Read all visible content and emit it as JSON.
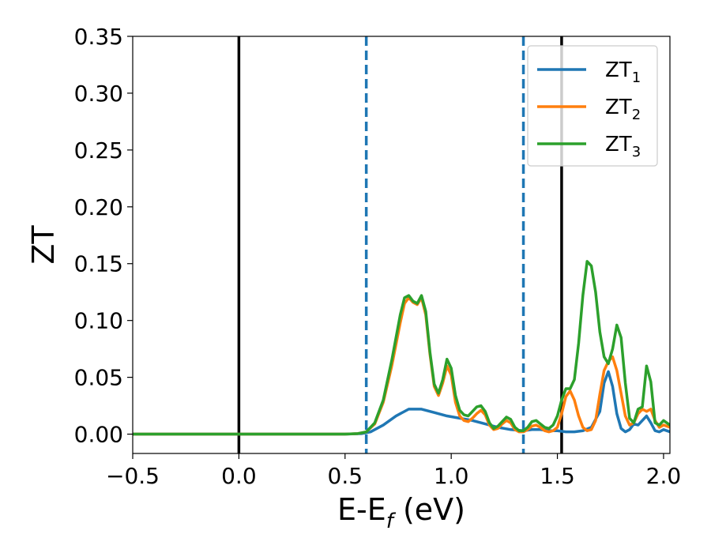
{
  "chart_data": {
    "type": "line",
    "xlabel": {
      "main": "E-E",
      "sub": "f",
      "rest": " (eV)"
    },
    "ylabel": "ZT",
    "xlim": [
      -0.5,
      2.03
    ],
    "ylim": [
      -0.017,
      0.35
    ],
    "xticks": [
      {
        "value": -0.5,
        "label": "−0.5"
      },
      {
        "value": 0.0,
        "label": "0.0"
      },
      {
        "value": 0.5,
        "label": "0.5"
      },
      {
        "value": 1.0,
        "label": "1.0"
      },
      {
        "value": 1.5,
        "label": "1.5"
      },
      {
        "value": 2.0,
        "label": "2.0"
      }
    ],
    "yticks": [
      {
        "value": 0.0,
        "label": "0.00"
      },
      {
        "value": 0.05,
        "label": "0.05"
      },
      {
        "value": 0.1,
        "label": "0.10"
      },
      {
        "value": 0.15,
        "label": "0.15"
      },
      {
        "value": 0.2,
        "label": "0.20"
      },
      {
        "value": 0.25,
        "label": "0.25"
      },
      {
        "value": 0.3,
        "label": "0.30"
      },
      {
        "value": 0.35,
        "label": "0.35"
      }
    ],
    "grid": false,
    "legend_position": "top-right",
    "vlines": [
      {
        "x": 0.0,
        "color": "#000000",
        "style": "solid"
      },
      {
        "x": 0.6,
        "color": "#1f77b4",
        "style": "dashed"
      },
      {
        "x": 1.34,
        "color": "#1f77b4",
        "style": "dashed"
      },
      {
        "x": 1.52,
        "color": "#000000",
        "style": "solid"
      }
    ],
    "series": [
      {
        "name": "ZT",
        "sub": "1",
        "color": "#1f77b4",
        "x": [
          -0.5,
          0.5,
          0.58,
          0.62,
          0.68,
          0.74,
          0.8,
          0.86,
          0.92,
          0.98,
          1.04,
          1.1,
          1.16,
          1.22,
          1.28,
          1.34,
          1.38,
          1.42,
          1.46,
          1.5,
          1.54,
          1.58,
          1.62,
          1.66,
          1.7,
          1.72,
          1.74,
          1.76,
          1.78,
          1.8,
          1.82,
          1.84,
          1.86,
          1.88,
          1.9,
          1.92,
          1.94,
          1.96,
          1.98,
          2.0,
          2.03
        ],
        "y": [
          0.0,
          0.0,
          0.0005,
          0.002,
          0.008,
          0.016,
          0.022,
          0.022,
          0.019,
          0.016,
          0.014,
          0.012,
          0.009,
          0.006,
          0.004,
          0.003,
          0.004,
          0.004,
          0.003,
          0.003,
          0.002,
          0.002,
          0.003,
          0.006,
          0.02,
          0.045,
          0.055,
          0.042,
          0.018,
          0.005,
          0.002,
          0.004,
          0.009,
          0.008,
          0.012,
          0.016,
          0.01,
          0.003,
          0.002,
          0.004,
          0.002
        ]
      },
      {
        "name": "ZT",
        "sub": "2",
        "color": "#ff7f0e",
        "x": [
          -0.5,
          0.5,
          0.56,
          0.6,
          0.64,
          0.68,
          0.72,
          0.76,
          0.78,
          0.8,
          0.82,
          0.84,
          0.86,
          0.88,
          0.9,
          0.92,
          0.94,
          0.96,
          0.98,
          1.0,
          1.02,
          1.04,
          1.06,
          1.08,
          1.1,
          1.12,
          1.14,
          1.16,
          1.18,
          1.2,
          1.22,
          1.24,
          1.26,
          1.28,
          1.3,
          1.32,
          1.34,
          1.36,
          1.38,
          1.4,
          1.42,
          1.44,
          1.46,
          1.48,
          1.5,
          1.52,
          1.54,
          1.56,
          1.58,
          1.6,
          1.62,
          1.64,
          1.66,
          1.68,
          1.7,
          1.72,
          1.74,
          1.76,
          1.78,
          1.8,
          1.82,
          1.84,
          1.86,
          1.88,
          1.9,
          1.92,
          1.94,
          1.96,
          1.98,
          2.0,
          2.03
        ],
        "y": [
          0.0,
          0.0,
          0.0005,
          0.002,
          0.009,
          0.028,
          0.06,
          0.098,
          0.115,
          0.12,
          0.116,
          0.114,
          0.12,
          0.105,
          0.07,
          0.042,
          0.034,
          0.045,
          0.06,
          0.052,
          0.028,
          0.016,
          0.012,
          0.011,
          0.014,
          0.018,
          0.021,
          0.017,
          0.008,
          0.004,
          0.005,
          0.009,
          0.012,
          0.01,
          0.004,
          0.002,
          0.002,
          0.004,
          0.007,
          0.008,
          0.006,
          0.003,
          0.002,
          0.003,
          0.006,
          0.018,
          0.033,
          0.038,
          0.03,
          0.016,
          0.006,
          0.003,
          0.004,
          0.012,
          0.035,
          0.056,
          0.064,
          0.068,
          0.056,
          0.036,
          0.016,
          0.008,
          0.01,
          0.018,
          0.022,
          0.02,
          0.022,
          0.012,
          0.006,
          0.008,
          0.006
        ]
      },
      {
        "name": "ZT",
        "sub": "3",
        "color": "#2ca02c",
        "x": [
          -0.5,
          0.5,
          0.56,
          0.6,
          0.64,
          0.68,
          0.72,
          0.76,
          0.78,
          0.8,
          0.82,
          0.84,
          0.86,
          0.88,
          0.9,
          0.92,
          0.94,
          0.96,
          0.98,
          1.0,
          1.02,
          1.04,
          1.06,
          1.08,
          1.1,
          1.12,
          1.14,
          1.16,
          1.18,
          1.2,
          1.22,
          1.24,
          1.26,
          1.28,
          1.3,
          1.32,
          1.34,
          1.36,
          1.38,
          1.4,
          1.42,
          1.44,
          1.46,
          1.48,
          1.5,
          1.52,
          1.54,
          1.56,
          1.58,
          1.6,
          1.62,
          1.64,
          1.66,
          1.68,
          1.7,
          1.72,
          1.74,
          1.76,
          1.78,
          1.8,
          1.82,
          1.84,
          1.86,
          1.88,
          1.9,
          1.92,
          1.94,
          1.96,
          1.98,
          2.0,
          2.03
        ],
        "y": [
          0.0,
          0.0,
          0.0005,
          0.002,
          0.01,
          0.03,
          0.065,
          0.105,
          0.12,
          0.122,
          0.117,
          0.115,
          0.122,
          0.108,
          0.072,
          0.044,
          0.036,
          0.048,
          0.066,
          0.058,
          0.034,
          0.021,
          0.017,
          0.016,
          0.02,
          0.024,
          0.025,
          0.02,
          0.01,
          0.005,
          0.007,
          0.011,
          0.015,
          0.013,
          0.006,
          0.003,
          0.003,
          0.006,
          0.011,
          0.012,
          0.009,
          0.006,
          0.005,
          0.008,
          0.016,
          0.03,
          0.04,
          0.04,
          0.048,
          0.08,
          0.122,
          0.152,
          0.148,
          0.125,
          0.09,
          0.068,
          0.062,
          0.075,
          0.096,
          0.085,
          0.045,
          0.014,
          0.01,
          0.022,
          0.024,
          0.06,
          0.046,
          0.01,
          0.008,
          0.012,
          0.008
        ]
      }
    ]
  }
}
